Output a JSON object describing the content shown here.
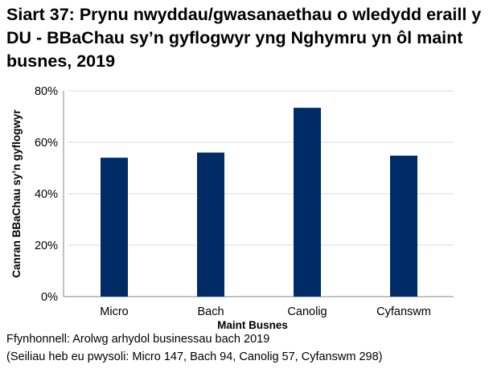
{
  "chart_data": {
    "type": "bar",
    "title": "Siart 37: Prynu nwyddau/gwasanaethau o wledydd eraill y DU - BBaChau sy’n gyflogwyr yng Nghymru yn ôl maint busnes, 2019",
    "categories": [
      "Micro",
      "Bach",
      "Canolig",
      "Cyfanswm"
    ],
    "values": [
      54,
      56,
      73.4,
      54.8
    ],
    "xlabel": "Maint Busnes",
    "ylabel": "Canran BBaChau sy’n gyflogwyr",
    "ylim": [
      0,
      80
    ],
    "yticks": [
      "0%",
      "20%",
      "40%",
      "60%",
      "80%"
    ],
    "grid": true,
    "bar_color": "#002b66"
  },
  "source": "Ffynhonnell: Arolwg arhydol businessau bach 2019",
  "note": "(Seiliau heb eu pwysoli: Micro 147, Bach 94, Canolig 57, Cyfanswm 298)"
}
